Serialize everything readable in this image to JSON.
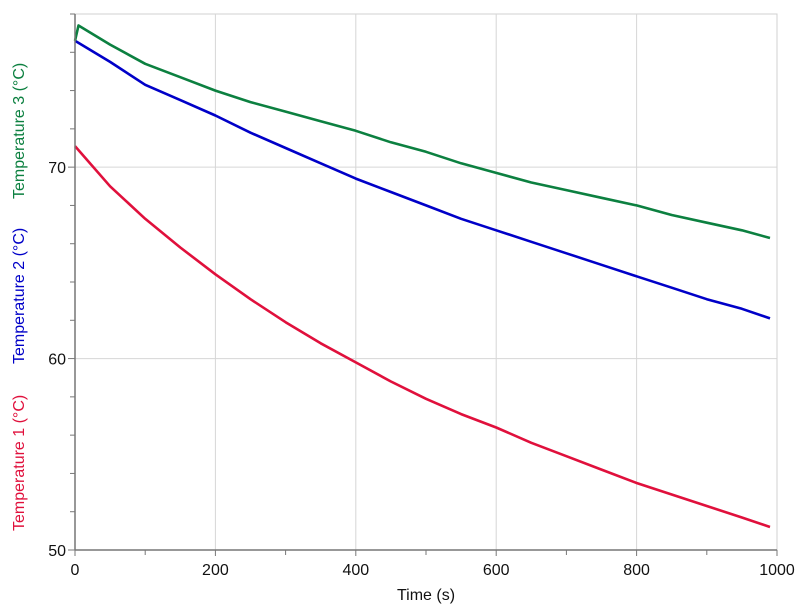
{
  "chart_data": {
    "type": "line",
    "title": "",
    "xlabel": "Time (s)",
    "xlim": [
      0,
      1000
    ],
    "ylim": [
      50,
      78
    ],
    "x_major_ticks": [
      0,
      200,
      400,
      600,
      800,
      1000
    ],
    "x_minor_step": 100,
    "y_major_ticks": [
      50,
      60,
      70
    ],
    "y_minor_step": 2,
    "grid": true,
    "ylabels": [
      {
        "text": "Temperature 1 (°C)",
        "color": "#e0103c"
      },
      {
        "text": "Temperature 2 (°C)",
        "color": "#0000c8"
      },
      {
        "text": "Temperature 3 (°C)",
        "color": "#0c8040"
      }
    ],
    "series": [
      {
        "name": "Temperature 1 (°C)",
        "color": "#e0103c",
        "x": [
          0,
          50,
          100,
          150,
          200,
          250,
          300,
          350,
          400,
          450,
          500,
          550,
          600,
          650,
          700,
          750,
          800,
          850,
          900,
          950,
          990
        ],
        "y": [
          71.1,
          69.0,
          67.3,
          65.8,
          64.4,
          63.1,
          61.9,
          60.8,
          59.8,
          58.8,
          57.9,
          57.1,
          56.4,
          55.6,
          54.9,
          54.2,
          53.5,
          52.9,
          52.3,
          51.7,
          51.2
        ]
      },
      {
        "name": "Temperature 2 (°C)",
        "color": "#0000c8",
        "x": [
          0,
          50,
          100,
          150,
          200,
          250,
          300,
          350,
          400,
          450,
          500,
          550,
          600,
          650,
          700,
          750,
          800,
          850,
          900,
          950,
          990
        ],
        "y": [
          76.6,
          75.5,
          74.3,
          73.5,
          72.7,
          71.8,
          71.0,
          70.2,
          69.4,
          68.7,
          68.0,
          67.3,
          66.7,
          66.1,
          65.5,
          64.9,
          64.3,
          63.7,
          63.1,
          62.6,
          62.1
        ]
      },
      {
        "name": "Temperature 3 (°C)",
        "color": "#0c8040",
        "x": [
          0,
          5,
          50,
          100,
          150,
          200,
          250,
          300,
          350,
          400,
          450,
          500,
          550,
          600,
          650,
          700,
          750,
          800,
          850,
          900,
          950,
          990
        ],
        "y": [
          76.6,
          77.4,
          76.4,
          75.4,
          74.7,
          74.0,
          73.4,
          72.9,
          72.4,
          71.9,
          71.3,
          70.8,
          70.2,
          69.7,
          69.2,
          68.8,
          68.4,
          68.0,
          67.5,
          67.1,
          66.7,
          66.3
        ]
      }
    ]
  }
}
